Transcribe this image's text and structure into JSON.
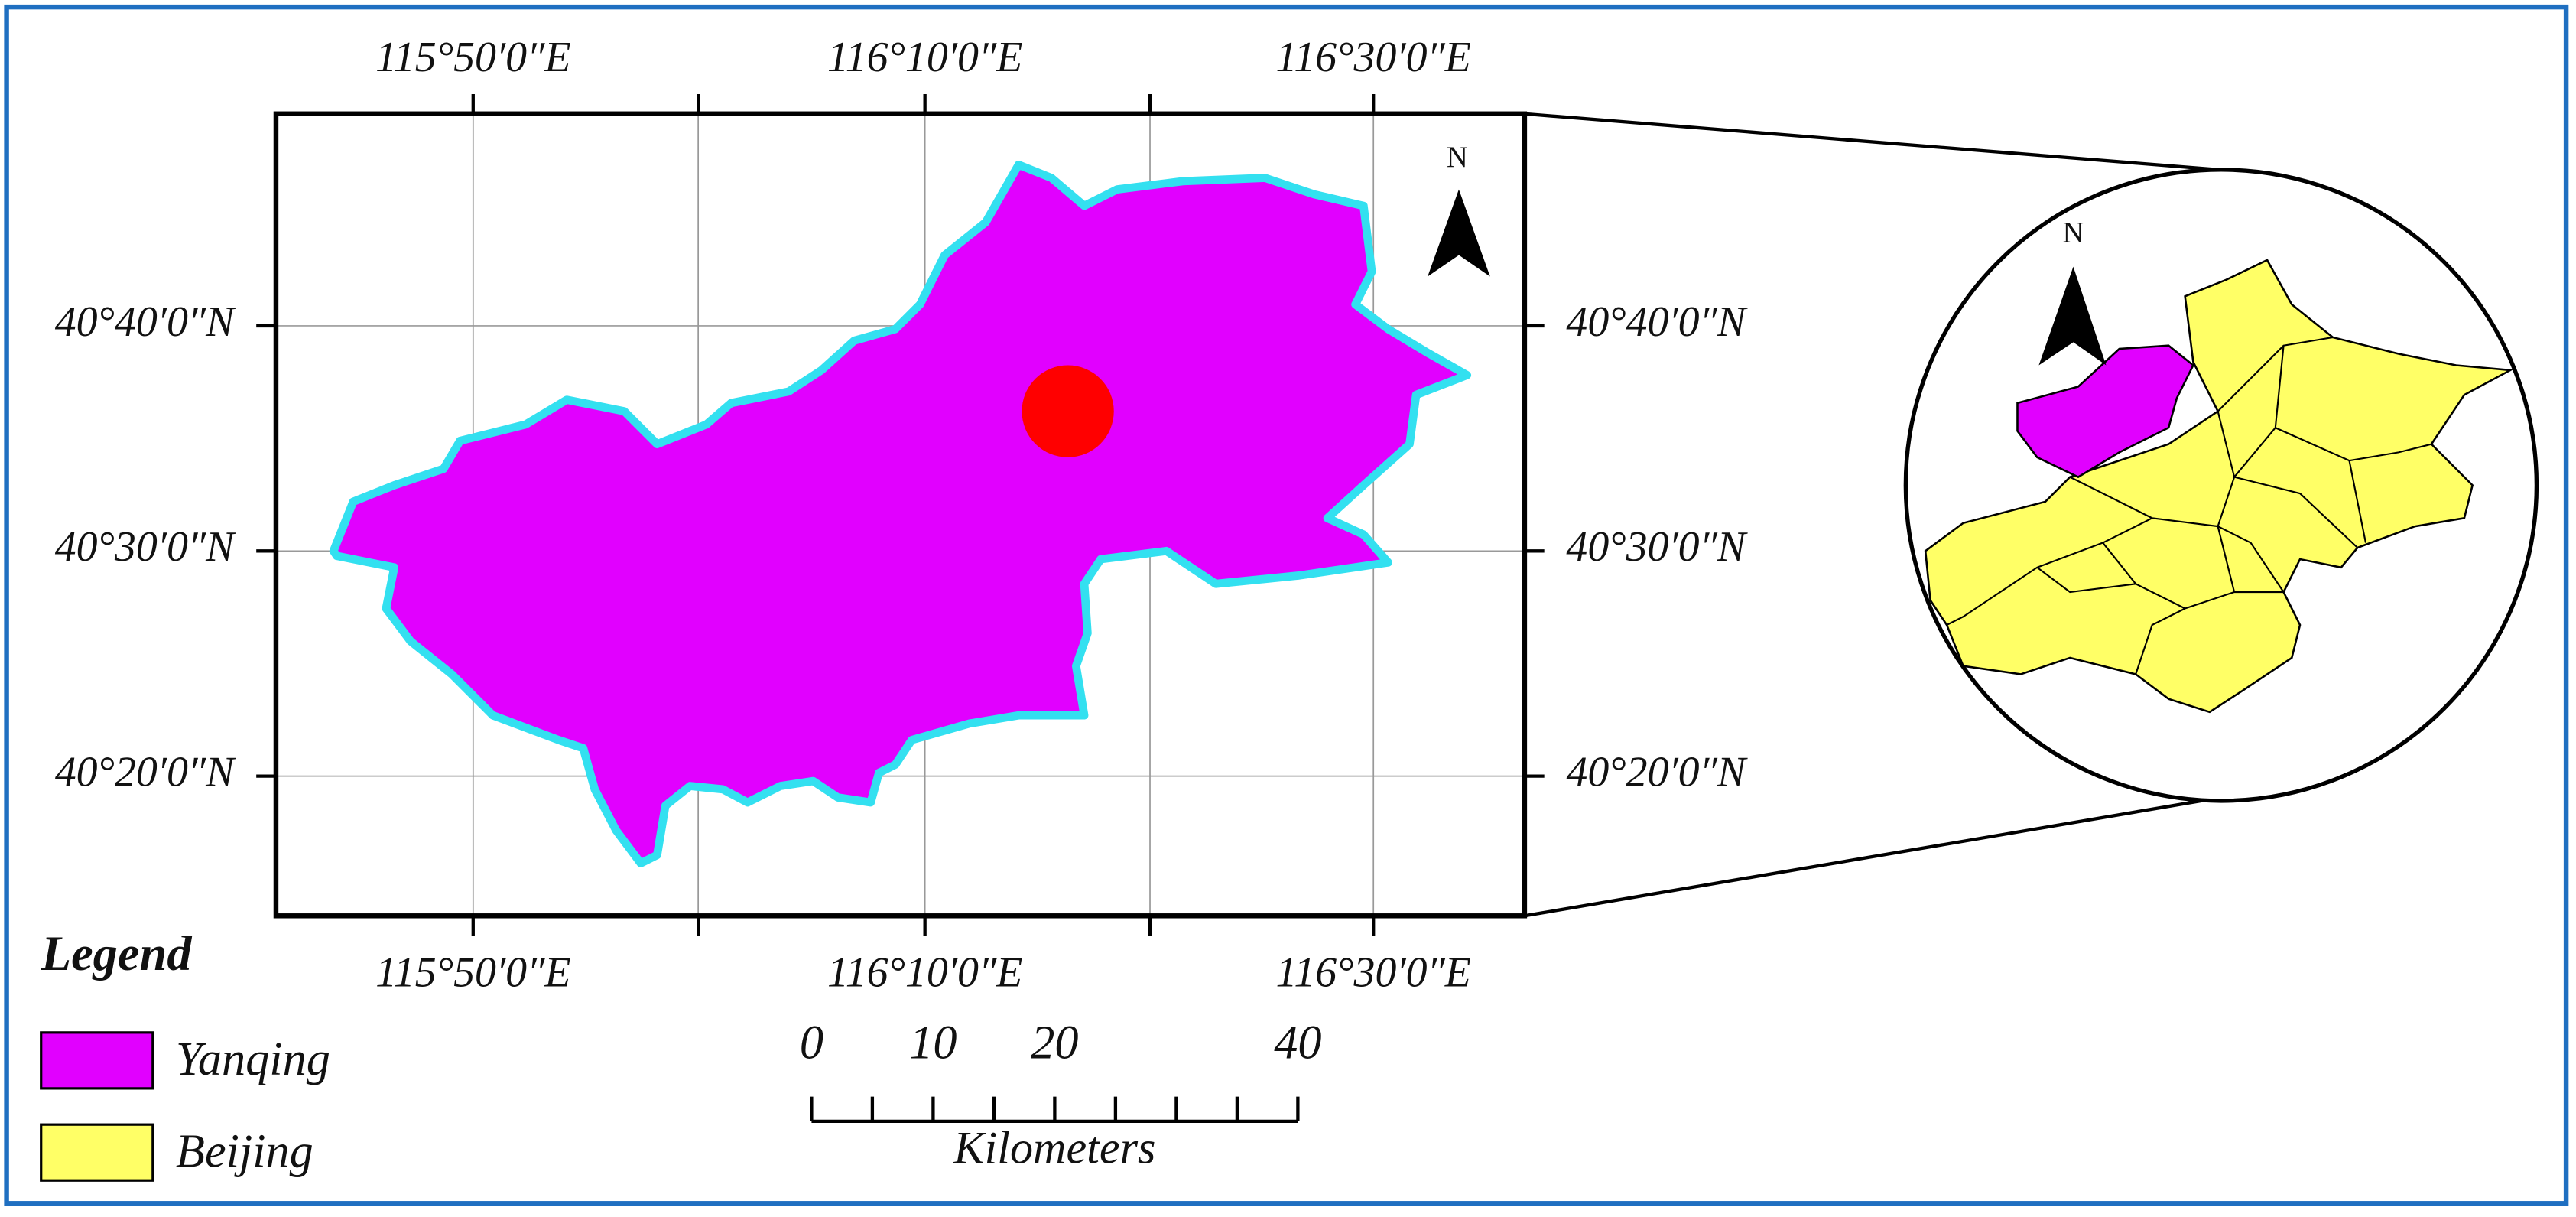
{
  "map": {
    "top_lon_labels": [
      "115°50′0″E",
      "116°10′0″E",
      "116°30′0″E"
    ],
    "bottom_lon_labels": [
      "115°50′0″E",
      "116°10′0″E",
      "116°30′0″E"
    ],
    "left_lat_labels": [
      "40°40′0″N",
      "40°30′0″N",
      "40°20′0″N"
    ],
    "right_lat_labels": [
      "40°40′0″N",
      "40°30′0″N",
      "40°20′0″N"
    ],
    "north_label": "N",
    "inset_north_label": "N"
  },
  "legend": {
    "title": "Legend",
    "items": [
      {
        "label": "Yanqing",
        "color": "#e100ff"
      },
      {
        "label": "Beijing",
        "color": "#ffff66"
      }
    ]
  },
  "scale_bar": {
    "ticks": [
      0,
      10,
      20,
      40
    ],
    "unit": "Kilometers"
  }
}
